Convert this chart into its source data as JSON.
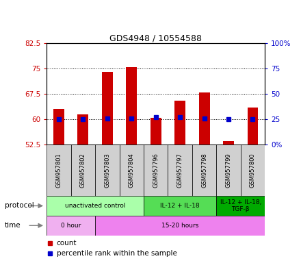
{
  "title": "GDS4948 / 10554588",
  "samples": [
    "GSM957801",
    "GSM957802",
    "GSM957803",
    "GSM957804",
    "GSM957796",
    "GSM957797",
    "GSM957798",
    "GSM957799",
    "GSM957800"
  ],
  "count_top": [
    63.0,
    61.5,
    74.0,
    75.5,
    60.5,
    65.5,
    68.0,
    53.5,
    63.5
  ],
  "count_bottom": [
    52.5,
    52.5,
    52.5,
    52.5,
    52.5,
    52.5,
    52.5,
    52.5,
    52.5
  ],
  "percentile": [
    25,
    25,
    26,
    26,
    27,
    27,
    26,
    25,
    25
  ],
  "ylim": [
    52.5,
    82.5
  ],
  "yticks_left": [
    52.5,
    60.0,
    67.5,
    75.0,
    82.5
  ],
  "yticks_right": [
    0,
    25,
    50,
    75,
    100
  ],
  "protocol_groups": [
    {
      "label": "unactivated control",
      "start": 0,
      "end": 4,
      "color": "#aaffaa"
    },
    {
      "label": "IL-12 + IL-18",
      "start": 4,
      "end": 7,
      "color": "#55dd55"
    },
    {
      "label": "IL-12 + IL-18,\nTGF-β",
      "start": 7,
      "end": 9,
      "color": "#00aa00"
    }
  ],
  "time_groups": [
    {
      "label": "0 hour",
      "start": 0,
      "end": 2,
      "color": "#f0b0f0"
    },
    {
      "label": "15-20 hours",
      "start": 2,
      "end": 9,
      "color": "#ee82ee"
    }
  ],
  "bar_color": "#cc0000",
  "percentile_color": "#0000cc",
  "left_yaxis_color": "#cc0000",
  "right_yaxis_color": "#0000cc",
  "bar_width": 0.45,
  "sample_box_color": "#d0d0d0"
}
